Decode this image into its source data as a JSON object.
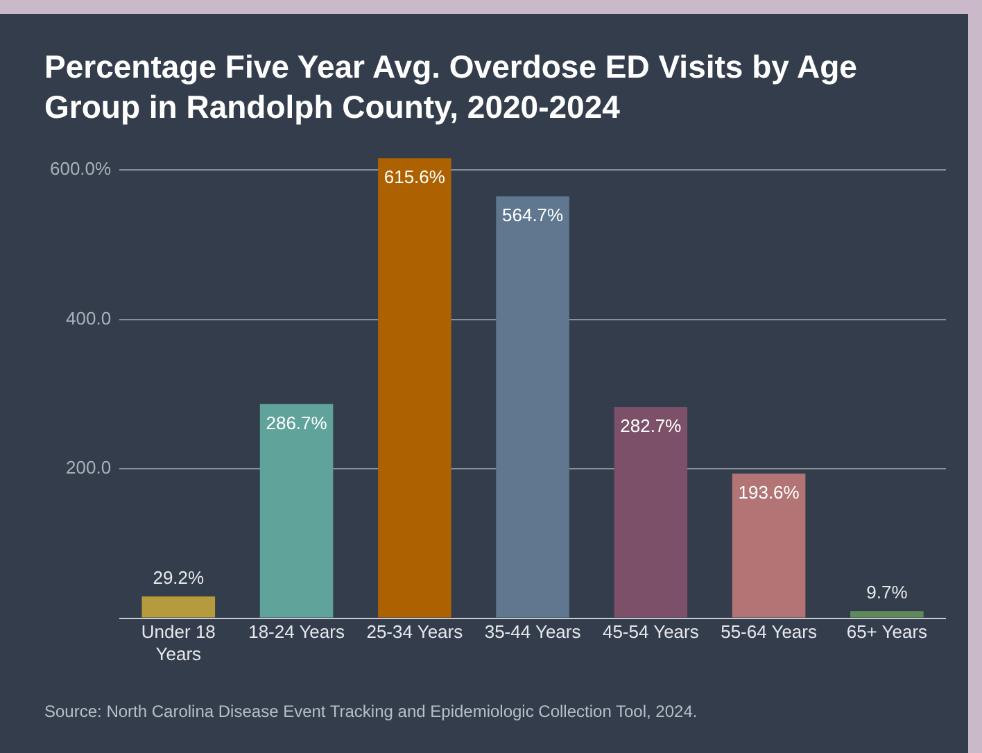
{
  "chart_data": {
    "type": "bar",
    "title": "Percentage Five Year Avg. Overdose ED Visits by Age Group in Randolph County, 2020-2024",
    "categories": [
      "Under 18 Years",
      "18-24 Years",
      "25-34 Years",
      "35-44 Years",
      "45-54 Years",
      "55-64 Years",
      "65+ Years"
    ],
    "values": [
      29.2,
      286.7,
      615.6,
      564.7,
      282.7,
      193.6,
      9.7
    ],
    "value_labels": [
      "29.2%",
      "286.7%",
      "615.6%",
      "564.7%",
      "282.7%",
      "193.6%",
      "9.7%"
    ],
    "colors": [
      "#b59a3e",
      "#5fa39a",
      "#ae6100",
      "#5f7890",
      "#7c5068",
      "#b27474",
      "#5f8a5a"
    ],
    "ylim": [
      0,
      620
    ],
    "yticks": [
      {
        "value": 0,
        "label": null
      },
      {
        "value": 200,
        "label": "200.0"
      },
      {
        "value": 400,
        "label": "400.0"
      },
      {
        "value": 600,
        "label": "600.0%"
      }
    ],
    "grid": "y",
    "legend": false,
    "annotations": [
      "Source: North Carolina Disease Event Tracking and Epidemiologic Collection Tool, 2024."
    ]
  }
}
